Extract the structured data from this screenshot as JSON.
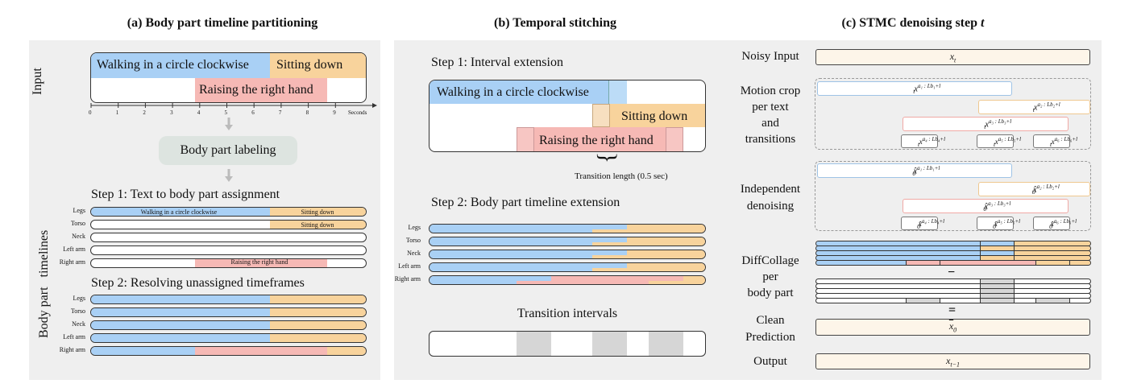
{
  "colors": {
    "blue": "#a9d0f5",
    "orange": "#f8d39c",
    "pink": "#f6b9b5",
    "gray": "#d6d6d6",
    "panel": "#efefef",
    "cream": "#fdf5e9"
  },
  "panel_a": {
    "title": "(a) Body part timeline partitioning",
    "input_label": "Input",
    "texts": {
      "walking": "Walking in a circle clockwise",
      "sitting": "Sitting down",
      "raising": "Raising the right hand"
    },
    "axis_ticks": [
      "0",
      "1",
      "2",
      "3",
      "4",
      "5",
      "6",
      "7",
      "8",
      "9"
    ],
    "axis_unit": "Seconds",
    "labeling": "Body part labeling",
    "step1": "Step 1: Text to body part assignment",
    "step2": "Step 2: Resolving unassigned timeframes",
    "side_label": "Body part   timelines",
    "rows": [
      "Legs",
      "Torso",
      "Neck",
      "Left arm",
      "Right arm"
    ],
    "step1_labels": {
      "legs_blue": "Walking in a circle clockwise",
      "legs_orange": "Sitting down",
      "torso_orange": "Sitting down",
      "rightarm_pink": "Raising the right hand"
    }
  },
  "panel_b": {
    "title": "(b) Temporal stitching",
    "step1": "Step 1: Interval extension",
    "walking": "Walking in a circle clockwise",
    "sitting": "Sitting down",
    "raising": "Raising the right hand",
    "brace": "}",
    "transition_note": "Transition length (0.5 sec)",
    "step2": "Step 2: Body part timeline extension",
    "rows": [
      "Legs",
      "Torso",
      "Neck",
      "Left arm",
      "Right arm"
    ],
    "intervals_title": "Transition intervals"
  },
  "panel_c": {
    "title": "(c) STMC denoising step ",
    "title_var": "t",
    "labels": {
      "noisy": "Noisy Input",
      "crop": "Motion crop\nper text\nand\ntransitions",
      "indep": "Independent\ndenoising",
      "diffcollage": "DiffCollage\nper\nbody part",
      "clean": "Clean\nPrediction",
      "output": "Output"
    },
    "minus": "−",
    "equals": "=",
    "x_t": "x",
    "x_t_sub": "t",
    "x_out_sub": "t−1",
    "x0_hat": "x",
    "x0_sub": "0",
    "crop_items": [
      {
        "base": "x",
        "sub": "t",
        "sup": "a₁ : Lb₁+l"
      },
      {
        "base": "x",
        "sub": "t",
        "sup": "a₂ : Lb₂+l"
      },
      {
        "base": "x",
        "sub": "t",
        "sup": "a₃ : Lb₃+l"
      },
      {
        "base": "x",
        "sub": "t",
        "sup": "a₄ : Lb₄+l"
      },
      {
        "base": "x",
        "sub": "t",
        "sup": "a₅ : Lb₅+l"
      },
      {
        "base": "x",
        "sub": "t",
        "sup": "a₆ : Lb₆+l"
      }
    ],
    "indep_items": [
      {
        "base": "x̂",
        "sub": "0",
        "sup": "a₁ : Lb₁+l"
      },
      {
        "base": "x̂",
        "sub": "0",
        "sup": "a₂ : Lb₂+l"
      },
      {
        "base": "x̂",
        "sub": "0",
        "sup": "a₃ : Lb₃+l"
      },
      {
        "base": "x̂",
        "sub": "0",
        "sup": "a₄ : Lb₄+l"
      },
      {
        "base": "x̂",
        "sub": "0",
        "sup": "a₅ : Lb₅+l"
      },
      {
        "base": "x̂",
        "sub": "0",
        "sup": "a₆ : Lb₆+l"
      }
    ]
  }
}
